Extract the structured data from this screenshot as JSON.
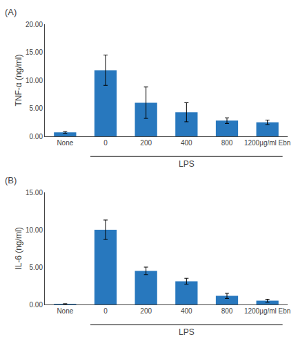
{
  "chart_data": [
    {
      "type": "bar",
      "title": "(A)",
      "categories": [
        "None",
        "0",
        "200",
        "400",
        "800",
        "1200µg/ml Ebn"
      ],
      "values": [
        0.7,
        11.8,
        6.0,
        4.3,
        2.8,
        2.5
      ],
      "errors": [
        0.15,
        2.7,
        2.8,
        1.7,
        0.5,
        0.4
      ],
      "color": "#2878BE",
      "ylabel": "TNF-α (ng/ml)",
      "ylim": [
        0,
        20
      ],
      "yticks": [
        {
          "value": 0,
          "label": "0.00"
        },
        {
          "value": 5,
          "label": "5.00"
        },
        {
          "value": 10,
          "label": "10.00"
        },
        {
          "value": 15,
          "label": "15.00"
        },
        {
          "value": 20,
          "label": "20.00"
        }
      ],
      "grid": false,
      "annotations": [
        {
          "text": "LPS",
          "categories": [
            "0",
            "200",
            "400",
            "800",
            "1200µg/ml Ebn"
          ]
        }
      ]
    },
    {
      "type": "bar",
      "title": "(B)",
      "categories": [
        "None",
        "0",
        "200",
        "400",
        "800",
        "1200µg/ml Ebn"
      ],
      "values": [
        0.05,
        10.0,
        4.5,
        3.1,
        1.15,
        0.5
      ],
      "errors": [
        0.05,
        1.3,
        0.5,
        0.4,
        0.35,
        0.2
      ],
      "color": "#2878BE",
      "ylabel": "IL-6 (ng/ml)",
      "ylim": [
        0,
        15
      ],
      "yticks": [
        {
          "value": 0,
          "label": "0.00"
        },
        {
          "value": 5,
          "label": "5.00"
        },
        {
          "value": 10,
          "label": "10.00"
        },
        {
          "value": 15,
          "label": "15.00"
        }
      ],
      "grid": false,
      "annotations": [
        {
          "text": "LPS",
          "categories": [
            "0",
            "200",
            "400",
            "800",
            "1200µg/ml Ebn"
          ]
        }
      ]
    }
  ]
}
